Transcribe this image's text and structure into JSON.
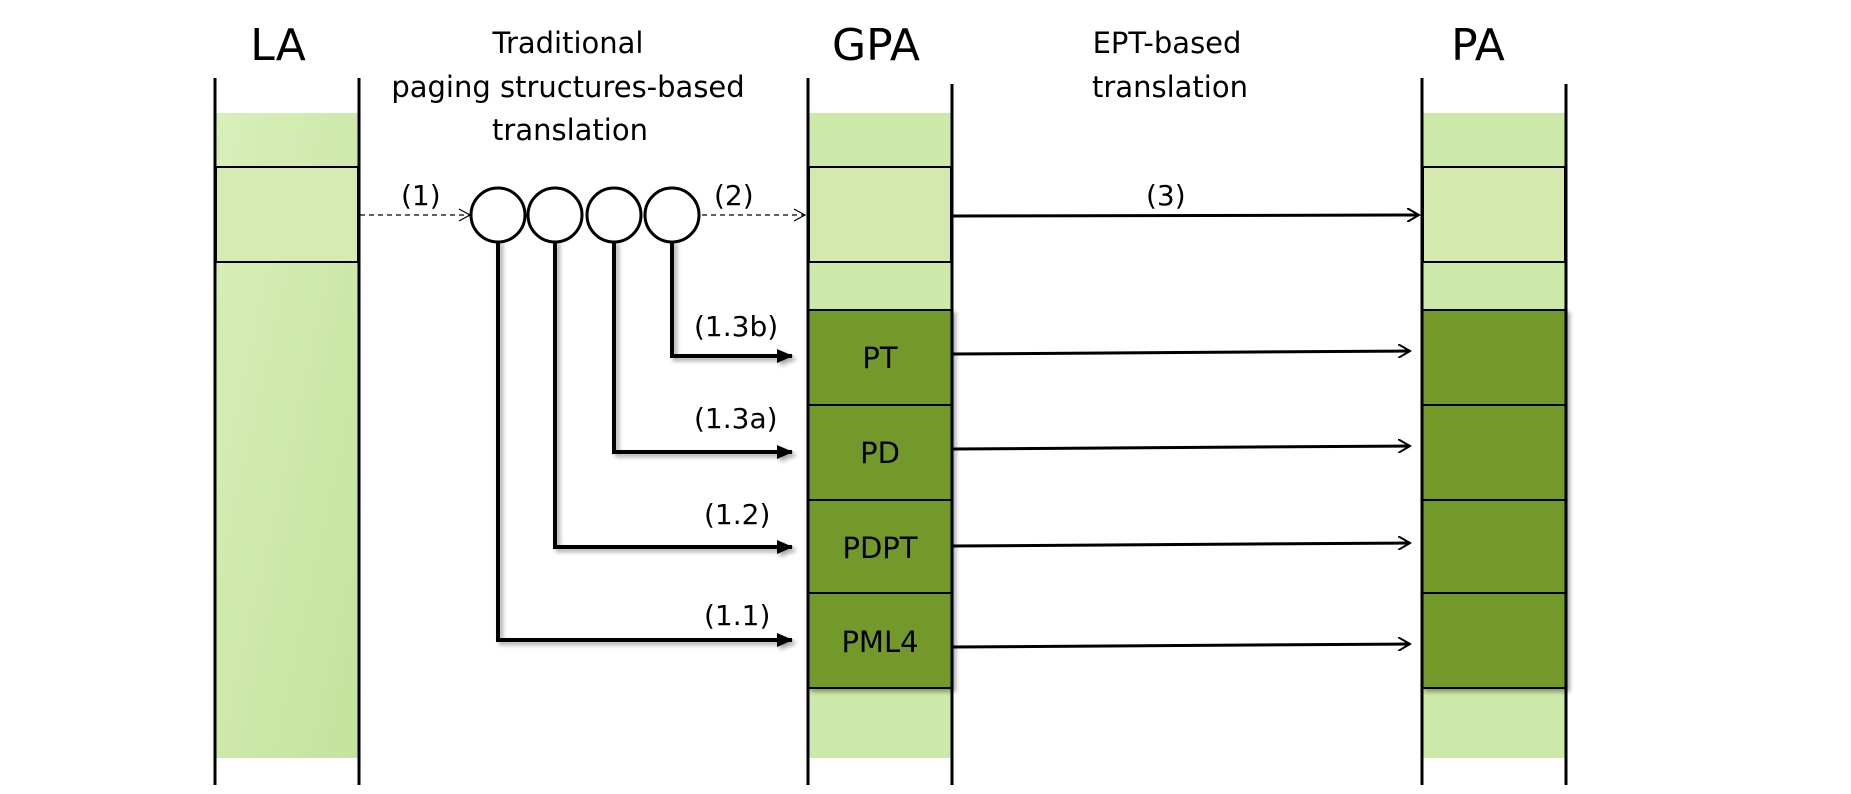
{
  "columns": {
    "la": "LA",
    "gpa": "GPA",
    "pa": "PA"
  },
  "headings": {
    "traditional": [
      "Traditional",
      "paging structures-based",
      "translation"
    ],
    "ept": [
      "EPT-based",
      "translation"
    ]
  },
  "arrow_labels": {
    "step1": "(1)",
    "step2": "(2)",
    "step3": "(3)",
    "step13b": "(1.3b)",
    "step13a": "(1.3a)",
    "step12": "(1.2)",
    "step11": "(1.1)"
  },
  "blocks": {
    "pt": "PT",
    "pd": "PD",
    "pdpt": "PDPT",
    "pml4": "PML4"
  },
  "colors": {
    "light_green": "#cde9aa",
    "mid_green": "#d5e8ae",
    "dark_green": "#72992b",
    "line": "#000000"
  }
}
